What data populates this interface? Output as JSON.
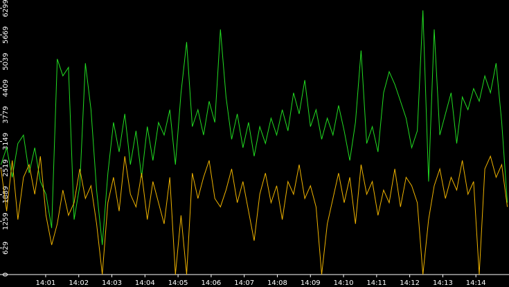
{
  "chart_data": {
    "type": "line",
    "x": [
      -0.35,
      -0.18,
      -0.01,
      0.16,
      0.33,
      0.5,
      0.67,
      0.84,
      1.01,
      1.18,
      1.35,
      1.52,
      1.69,
      1.86,
      2.03,
      2.2,
      2.37,
      2.54,
      2.71,
      2.88,
      3.05,
      3.22,
      3.39,
      3.56,
      3.73,
      3.9,
      4.07,
      4.24,
      4.41,
      4.58,
      4.75,
      4.92,
      5.09,
      5.26,
      5.43,
      5.6,
      5.77,
      5.94,
      6.11,
      6.28,
      6.45,
      6.62,
      6.79,
      6.96,
      7.13,
      7.3,
      7.47,
      7.64,
      7.81,
      7.98,
      8.15,
      8.32,
      8.49,
      8.66,
      8.83,
      9.0,
      9.17,
      9.34,
      9.51,
      9.68,
      9.85,
      10.02,
      10.19,
      10.36,
      10.53,
      10.7,
      10.87,
      11.04,
      11.21,
      11.38,
      11.55,
      11.72,
      11.89,
      12.06,
      12.23,
      12.4,
      12.57,
      12.74,
      12.91,
      13.08,
      13.25,
      13.42,
      13.59,
      13.76,
      13.93,
      14.1,
      14.27,
      14.44,
      14.61,
      14.78,
      14.95
    ],
    "series": [
      {
        "color": "#22dd22",
        "values": [
          2600,
          3000,
          2300,
          3100,
          3300,
          2400,
          3000,
          2200,
          1900,
          1100,
          5100,
          4700,
          4900,
          1300,
          2100,
          5000,
          3900,
          2000,
          700,
          2400,
          3600,
          2900,
          3800,
          2600,
          3400,
          2300,
          3500,
          2700,
          3600,
          3300,
          3900,
          2600,
          4300,
          5500,
          3500,
          3900,
          3300,
          4100,
          3600,
          5800,
          4200,
          3200,
          3800,
          3000,
          3600,
          2800,
          3500,
          3100,
          3700,
          3300,
          3900,
          3400,
          4300,
          3800,
          4600,
          3500,
          3900,
          3200,
          3700,
          3300,
          4000,
          3400,
          2700,
          3600,
          5300,
          3100,
          3500,
          2900,
          4300,
          4800,
          4500,
          4100,
          3700,
          3000,
          3400,
          6250,
          2200,
          5800,
          3300,
          3800,
          4300,
          3100,
          4200,
          3900,
          4400,
          4100,
          4700,
          4300,
          5000,
          3600,
          1700
        ]
      },
      {
        "color": "#f0b400",
        "values": [
          2500,
          1500,
          2700,
          1300,
          2300,
          2600,
          1900,
          2800,
          1400,
          700,
          1200,
          2000,
          1400,
          1700,
          2500,
          1800,
          2100,
          1200,
          0,
          1700,
          2300,
          1500,
          2800,
          1900,
          1600,
          2400,
          1300,
          2200,
          1700,
          1200,
          2300,
          0,
          1400,
          0,
          2400,
          1800,
          2300,
          2700,
          1800,
          1600,
          2000,
          2500,
          1700,
          2200,
          1500,
          800,
          1900,
          2400,
          1700,
          2100,
          1300,
          2200,
          1900,
          2600,
          1800,
          2100,
          1600,
          0,
          1200,
          1800,
          2400,
          1700,
          2300,
          1200,
          2600,
          1900,
          2200,
          1400,
          2000,
          1700,
          2500,
          1600,
          2300,
          2100,
          1700,
          0,
          1300,
          2100,
          2500,
          1800,
          2300,
          2000,
          2700,
          1900,
          2200,
          0,
          2500,
          2800,
          2300,
          2600,
          1600
        ]
      }
    ],
    "xlim": [
      -0.38,
      15.0
    ],
    "xticks": [
      {
        "value": 1,
        "label": "14:01"
      },
      {
        "value": 2,
        "label": "14:02"
      },
      {
        "value": 3,
        "label": "14:03"
      },
      {
        "value": 4,
        "label": "14:04"
      },
      {
        "value": 5,
        "label": "14:05"
      },
      {
        "value": 6,
        "label": "14:06"
      },
      {
        "value": 7,
        "label": "14:07"
      },
      {
        "value": 8,
        "label": "14:08"
      },
      {
        "value": 9,
        "label": "14:09"
      },
      {
        "value": 10,
        "label": "14:10"
      },
      {
        "value": 11,
        "label": "14:11"
      },
      {
        "value": 12,
        "label": "14:12"
      },
      {
        "value": 13,
        "label": "14:13"
      },
      {
        "value": 14,
        "label": "14:14"
      }
    ],
    "ylim": [
      0,
      6299
    ],
    "yticks": [
      0,
      629,
      1259,
      1889,
      2519,
      3149,
      3779,
      4409,
      5039,
      5669,
      6299
    ]
  }
}
